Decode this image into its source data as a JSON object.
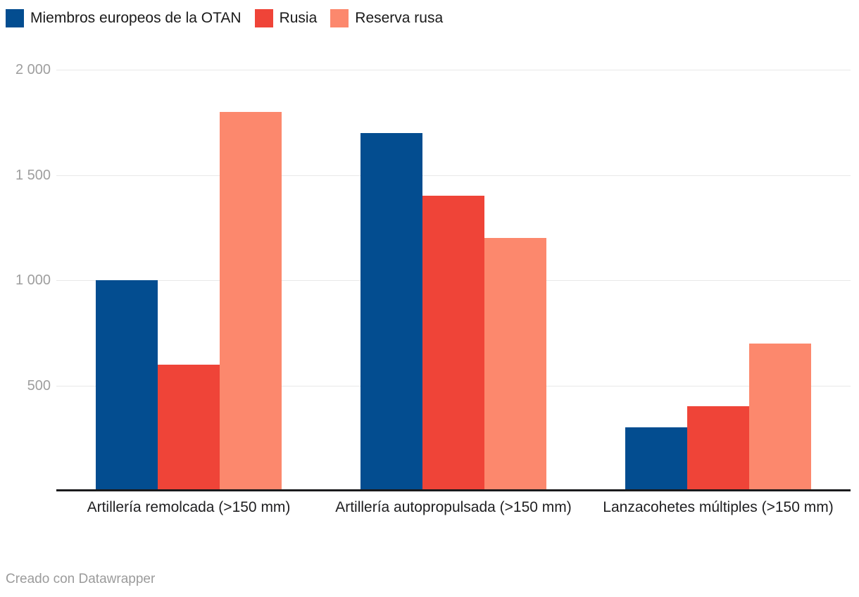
{
  "chart_data": {
    "type": "bar",
    "title": "",
    "xlabel": "",
    "ylabel": "",
    "categories": [
      "Artillería remolcada (>150 mm)",
      "Artillería autopropulsada (>150 mm)",
      "Lanzacohetes múltiples (>150 mm)"
    ],
    "series": [
      {
        "name": "Miembros europeos de la OTAN",
        "color": "#034d90",
        "values": [
          1000,
          1700,
          300
        ]
      },
      {
        "name": "Rusia",
        "color": "#ef4438",
        "values": [
          600,
          1400,
          400
        ]
      },
      {
        "name": "Reserva rusa",
        "color": "#fc886d",
        "values": [
          1800,
          1200,
          700
        ]
      }
    ],
    "ylim": [
      0,
      2000
    ],
    "yticks": [
      500,
      1000,
      1500,
      2000
    ],
    "ytick_labels": [
      "500",
      "1 000",
      "1 500",
      "2 000"
    ],
    "grid": true,
    "legend_position": "top-left"
  },
  "colors": {
    "grid": "#e8e8e8",
    "axis_line": "#1a1a1c",
    "tick_text": "#9e9e9e",
    "category_text": "#202022",
    "legend_text": "#1a1a1a",
    "footer_text": "#9b9b9b"
  },
  "footer": {
    "credit": "Creado con Datawrapper"
  }
}
